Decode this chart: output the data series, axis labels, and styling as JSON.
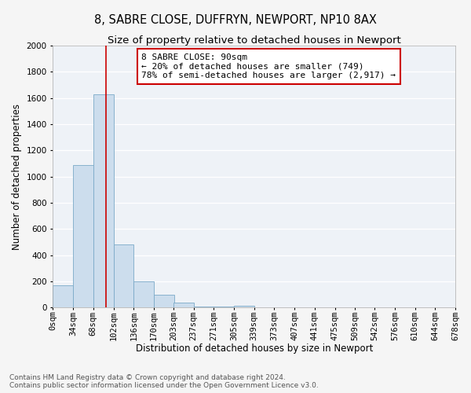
{
  "title": "8, SABRE CLOSE, DUFFRYN, NEWPORT, NP10 8AX",
  "subtitle": "Size of property relative to detached houses in Newport",
  "xlabel": "Distribution of detached houses by size in Newport",
  "ylabel": "Number of detached properties",
  "bar_color": "#ccdded",
  "bar_edge_color": "#7aaac8",
  "background_color": "#eef2f7",
  "grid_color": "#ffffff",
  "bin_edges": [
    0,
    34,
    68,
    102,
    136,
    170,
    203,
    237,
    271,
    305,
    339,
    373,
    407,
    441,
    475,
    509,
    542,
    576,
    610,
    644,
    678
  ],
  "bin_labels": [
    "0sqm",
    "34sqm",
    "68sqm",
    "102sqm",
    "136sqm",
    "170sqm",
    "203sqm",
    "237sqm",
    "271sqm",
    "305sqm",
    "339sqm",
    "373sqm",
    "407sqm",
    "441sqm",
    "475sqm",
    "509sqm",
    "542sqm",
    "576sqm",
    "610sqm",
    "644sqm",
    "678sqm"
  ],
  "counts": [
    170,
    1090,
    1625,
    480,
    200,
    100,
    40,
    10,
    5,
    15,
    0,
    0,
    0,
    0,
    0,
    0,
    0,
    0,
    0,
    0
  ],
  "ylim": [
    0,
    2000
  ],
  "yticks": [
    0,
    200,
    400,
    600,
    800,
    1000,
    1200,
    1400,
    1600,
    1800,
    2000
  ],
  "vline_x": 90,
  "vline_color": "#cc0000",
  "annotation_title": "8 SABRE CLOSE: 90sqm",
  "annotation_line1": "← 20% of detached houses are smaller (749)",
  "annotation_line2": "78% of semi-detached houses are larger (2,917) →",
  "annotation_box_color": "#ffffff",
  "annotation_box_edge_color": "#cc0000",
  "footer_line1": "Contains HM Land Registry data © Crown copyright and database right 2024.",
  "footer_line2": "Contains public sector information licensed under the Open Government Licence v3.0.",
  "title_fontsize": 10.5,
  "subtitle_fontsize": 9.5,
  "axis_label_fontsize": 8.5,
  "tick_fontsize": 7.5,
  "annotation_fontsize": 8,
  "footer_fontsize": 6.5
}
